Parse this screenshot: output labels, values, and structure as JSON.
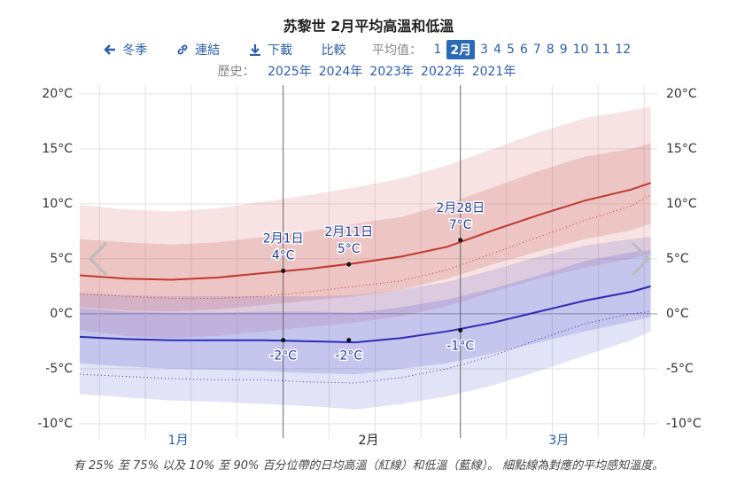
{
  "header": {
    "season": "冬季",
    "link": "連結",
    "download": "下載",
    "compare": "比較",
    "average_label": "平均值：",
    "months": [
      "1",
      "2月",
      "3",
      "4",
      "5",
      "6",
      "7",
      "8",
      "9",
      "10",
      "11",
      "12"
    ],
    "history_label": "歷史：",
    "years": [
      "2025年",
      "2024年",
      "2023年",
      "2022年",
      "2021年"
    ]
  },
  "chart_data": {
    "type": "band-line",
    "title": "苏黎世 2月平均高溫和低溫",
    "x": [
      1,
      8,
      15,
      22,
      29,
      36,
      43,
      50,
      57,
      64,
      71,
      78,
      85,
      88
    ],
    "xlim": [
      1,
      89
    ],
    "xticks": [
      {
        "value": 16,
        "label": "1月"
      },
      {
        "value": 45,
        "label": "2月"
      },
      {
        "value": 74,
        "label": "3月"
      }
    ],
    "xtick_colors": [
      "#2a5db0",
      "#222",
      "#2a5db0"
    ],
    "xgrid": [
      4,
      11,
      18,
      25,
      39,
      46,
      53,
      66,
      73,
      80,
      87
    ],
    "month_bounds": [
      32,
      59
    ],
    "ylim": [
      -11.3,
      20.8
    ],
    "yticks": [
      {
        "value": -10,
        "label": "-10°C"
      },
      {
        "value": -5,
        "label": "-5°C"
      },
      {
        "value": 0,
        "label": "0°C"
      },
      {
        "value": 5,
        "label": "5°C"
      },
      {
        "value": 10,
        "label": "10°C"
      },
      {
        "value": 15,
        "label": "15°C"
      },
      {
        "value": 20,
        "label": "20°C"
      }
    ],
    "grid": true,
    "bands": [
      {
        "color": "rgba(205,90,90,0.17)",
        "lower": [
          -1.5,
          -2,
          -2.2,
          -2,
          -1.6,
          -1.2,
          -0.8,
          -0.2,
          0.7,
          2,
          3.2,
          4.2,
          5,
          5.4
        ],
        "upper": [
          9.9,
          9.5,
          9.3,
          9.6,
          10.2,
          10.8,
          11.5,
          12.3,
          13.5,
          15,
          16.5,
          17.8,
          18.5,
          18.8
        ]
      },
      {
        "color": "rgba(205,90,90,0.22)",
        "lower": [
          0.6,
          0.3,
          0.2,
          0.4,
          0.8,
          1.2,
          1.6,
          2.2,
          3.2,
          4.5,
          5.7,
          6.8,
          7.6,
          8.2
        ],
        "upper": [
          6.8,
          6.5,
          6.3,
          6.5,
          7,
          7.5,
          8.2,
          8.8,
          10,
          11.5,
          13,
          14.3,
          15,
          15.5
        ]
      },
      {
        "color": "rgba(90,90,210,0.17)",
        "lower": [
          -7.3,
          -7.6,
          -7.9,
          -8,
          -8.2,
          -8.4,
          -8.7,
          -8.2,
          -7.5,
          -6.5,
          -5.2,
          -3.8,
          -2.4,
          -1.6
        ],
        "upper": [
          1.9,
          1.7,
          1.6,
          1.6,
          1.6,
          1.6,
          1.7,
          2.2,
          2.9,
          4,
          5.2,
          6.2,
          6.8,
          7
        ]
      },
      {
        "color": "rgba(90,90,210,0.22)",
        "lower": [
          -4.5,
          -4.8,
          -5,
          -5.1,
          -5.2,
          -5.4,
          -5.5,
          -5,
          -4.5,
          -3.6,
          -2.6,
          -1.6,
          -0.7,
          -0.3
        ],
        "upper": [
          0.5,
          0.2,
          0.1,
          0.1,
          0.2,
          0.2,
          0.1,
          0.6,
          1.3,
          2.3,
          3.5,
          4.8,
          5.6,
          5.8
        ]
      }
    ],
    "series": [
      {
        "color": "#c0392b",
        "style": "dotted",
        "values": [
          1.8,
          1.6,
          1.4,
          1.4,
          1.6,
          2,
          2.5,
          3,
          4,
          5.5,
          7,
          8.5,
          9.8,
          10.8
        ]
      },
      {
        "color": "#2c2cb8",
        "style": "dotted",
        "values": [
          -5.5,
          -5.7,
          -5.9,
          -6,
          -6,
          -6.2,
          -6.3,
          -5.8,
          -5,
          -3.8,
          -2.3,
          -0.9,
          0,
          0.2
        ]
      },
      {
        "color": "#c0392b",
        "style": "solid",
        "values": [
          3.5,
          3.2,
          3.1,
          3.3,
          3.7,
          4.1,
          4.6,
          5.2,
          6.1,
          7.6,
          9,
          10.3,
          11.3,
          11.9
        ]
      },
      {
        "color": "#2c2cb8",
        "style": "solid",
        "values": [
          -2.1,
          -2.3,
          -2.4,
          -2.4,
          -2.4,
          -2.5,
          -2.6,
          -2.2,
          -1.6,
          -0.8,
          0.2,
          1.2,
          2,
          2.5
        ]
      }
    ],
    "annotations": [
      {
        "x": 32,
        "label": "2月1日",
        "high": 3.9,
        "high_label": "4°C",
        "low": -2.4,
        "low_label": "-2°C"
      },
      {
        "x": 42,
        "label": "2月11日",
        "high": 4.5,
        "high_label": "5°C",
        "low": -2.4,
        "low_label": "-2°C"
      },
      {
        "x": 59,
        "label": "2月28日",
        "high": 6.7,
        "high_label": "7°C",
        "low": -1.5,
        "low_label": "-1°C"
      }
    ],
    "caption": "有 25% 至 75% 以及 10% 至 90% 百分位帶的日均高溫（紅線）和低溫（藍線）。 細點線為對應的平均感知溫度。"
  }
}
